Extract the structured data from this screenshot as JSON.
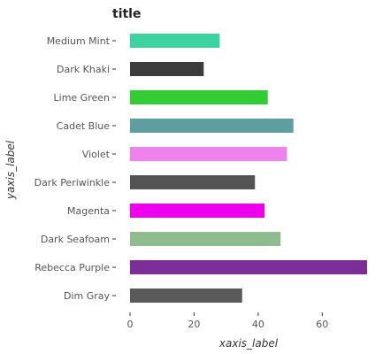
{
  "chart_data": {
    "type": "bar",
    "orientation": "horizontal",
    "title": "title",
    "xlabel": "xaxis_label",
    "ylabel": "yaxis_label",
    "xlim": [
      0,
      75
    ],
    "x_ticks": [
      0,
      20,
      40,
      60
    ],
    "grid": false,
    "categories": [
      "Dim Gray",
      "Rebecca Purple",
      "Dark Seafoam",
      "Magenta",
      "Dark Periwinkle",
      "Violet",
      "Cadet Blue",
      "Lime Green",
      "Dark Khaki",
      "Medium Mint"
    ],
    "values": [
      35,
      74,
      47,
      42,
      39,
      49,
      51,
      43,
      23,
      28
    ],
    "colors": [
      "#5a5a5a",
      "#7a2e96",
      "#8fbc8f",
      "#ee00ee",
      "#545454",
      "#ee82ee",
      "#5f9ea0",
      "#32cd32",
      "#3c3c3c",
      "#3cd3a0"
    ]
  }
}
